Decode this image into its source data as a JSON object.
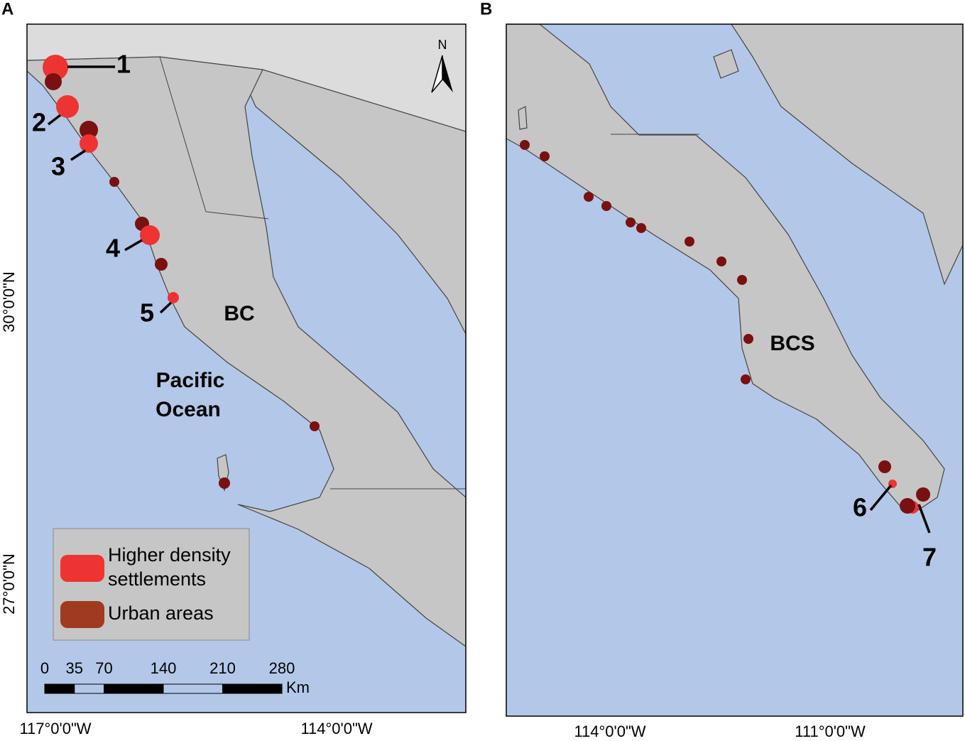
{
  "panel_a": {
    "label": "A",
    "region": "BC",
    "ocean": [
      "Pacific",
      "Ocean"
    ],
    "north": "N",
    "site_labels": [
      "1",
      "2",
      "3",
      "4",
      "5"
    ],
    "legend": [
      {
        "label": [
          "Higher density",
          "settlements"
        ],
        "color": "#ee3333"
      },
      {
        "label": [
          "Urban areas"
        ],
        "color": "#a03a20"
      }
    ],
    "scale": {
      "ticks": [
        0,
        35,
        70,
        140,
        210,
        280
      ],
      "unit": "Km"
    },
    "lon_labels": [
      "117°0'0\"W",
      "114°0'0\"W"
    ],
    "lat_labels": [
      "30°0'0\"N",
      "27°0'0\"N"
    ]
  },
  "panel_b": {
    "label": "B",
    "region": "BCS",
    "site_labels": [
      "6",
      "7"
    ],
    "lon_labels": [
      "114°0'0\"W",
      "111°0'0\"W"
    ]
  }
}
